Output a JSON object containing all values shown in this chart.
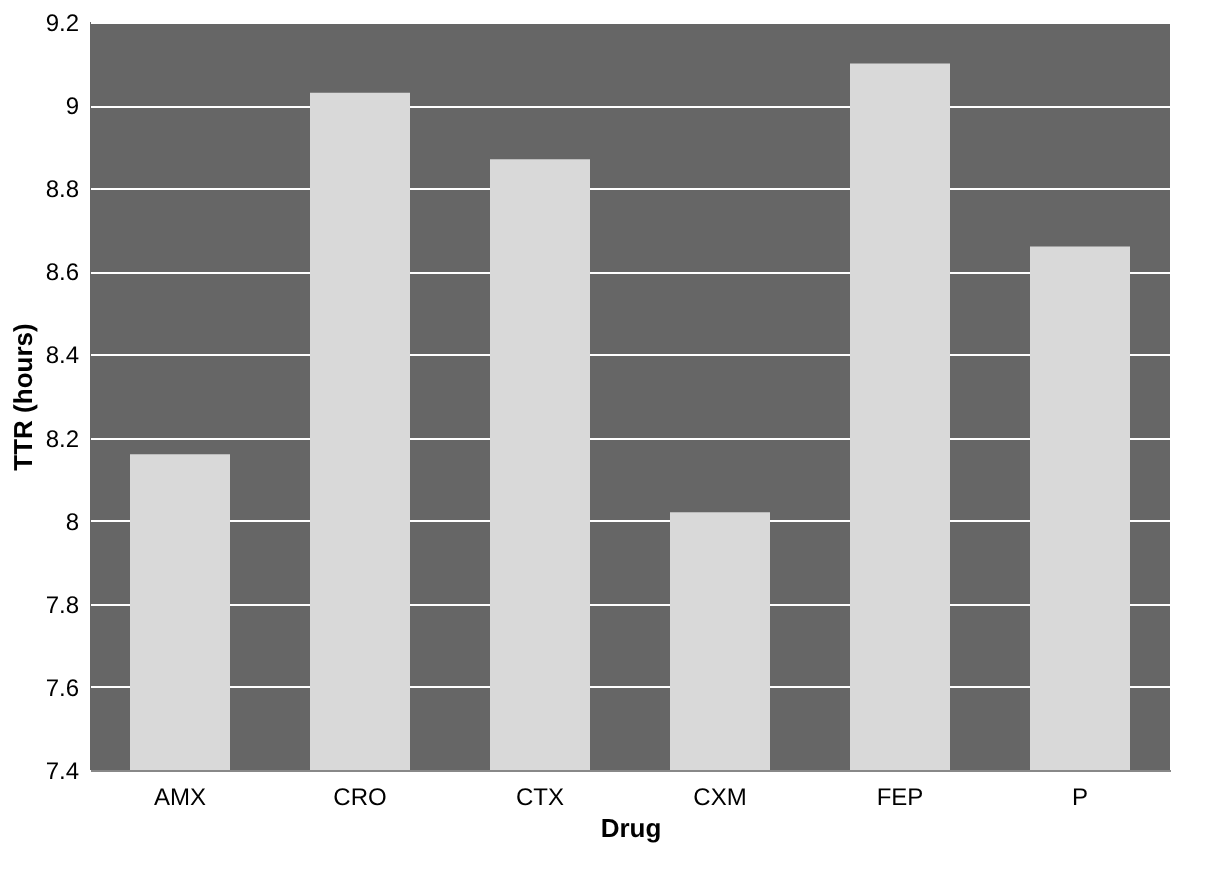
{
  "chart_data": {
    "type": "bar",
    "xlabel": "Drug",
    "ylabel": "TTR (hours)",
    "categories": [
      "AMX",
      "CRO",
      "CTX",
      "CXM",
      "FEP",
      "P"
    ],
    "values": [
      8.16,
      9.03,
      8.87,
      8.02,
      9.1,
      8.66
    ],
    "color": "#d9d9d9",
    "ylim": [
      7.4,
      9.2
    ],
    "yticks": [
      7.4,
      7.6,
      7.8,
      8,
      8.2,
      8.4,
      8.6,
      8.8,
      9,
      9.2
    ],
    "grid": "y"
  }
}
